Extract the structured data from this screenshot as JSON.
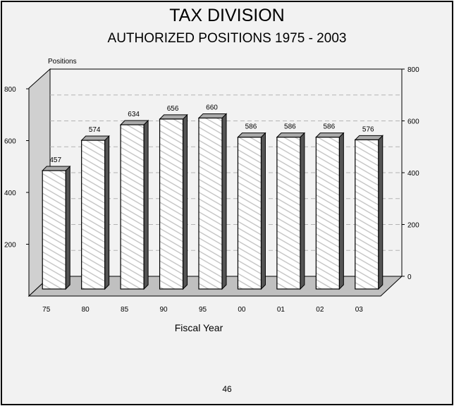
{
  "page": {
    "page_number": "46"
  },
  "chart_data": {
    "type": "bar",
    "title": "TAX DIVISION",
    "subtitle": "AUTHORIZED POSITIONS  1975 - 2003",
    "categories": [
      "75",
      "80",
      "85",
      "90",
      "95",
      "00",
      "01",
      "02",
      "03"
    ],
    "values": [
      457,
      574,
      634,
      656,
      660,
      586,
      586,
      586,
      576
    ],
    "data_labels": [
      "457",
      "574",
      "634",
      "656",
      "660",
      "586",
      "586",
      "586",
      "576"
    ],
    "xlabel": "Fiscal Year",
    "ylabel": "Positions",
    "ylim": [
      0,
      800
    ],
    "left_ticks": [
      "200",
      "400",
      "600",
      "800"
    ],
    "right_ticks": [
      "0",
      "200",
      "400",
      "600",
      "800"
    ],
    "grid": true,
    "three_d": true,
    "colors": {
      "bar_face": "#ffffff",
      "bar_hatch": "#c8c8c8",
      "bar_side": "#555555",
      "bar_top": "#aaaaaa",
      "floor": "#c0c0c0",
      "wall": "#d0d0d0",
      "grid": "#b4b4b4"
    }
  }
}
